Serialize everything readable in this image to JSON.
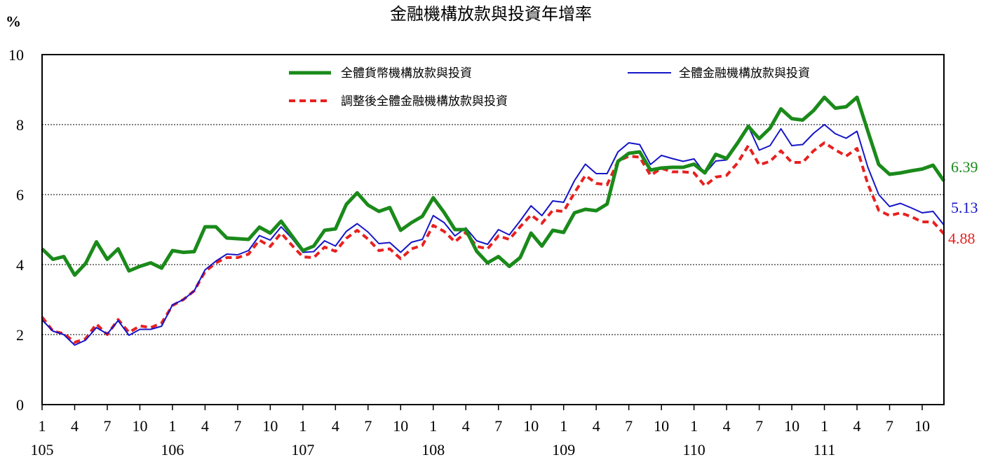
{
  "chart_data": {
    "type": "line",
    "title": "金融機構放款與投資年增率",
    "ylabel": "%",
    "ylim": [
      0,
      10
    ],
    "yticks": [
      0,
      2,
      4,
      6,
      8,
      10
    ],
    "grid": "horizontal dotted at 2,4,6,8",
    "legend_position": "top",
    "month_ticks": [
      "1",
      "4",
      "7",
      "10",
      "1",
      "4",
      "7",
      "10",
      "1",
      "4",
      "7",
      "10",
      "1",
      "4",
      "7",
      "10",
      "1",
      "4",
      "7",
      "10",
      "1",
      "4",
      "7",
      "10",
      "1",
      "4",
      "7",
      "10"
    ],
    "year_labels": [
      "105",
      "106",
      "107",
      "108",
      "109",
      "110",
      "111"
    ],
    "x_range": [
      "105-01",
      "111-11"
    ],
    "series": [
      {
        "name": "全體貨幣機構放款與投資",
        "color": "#1a8a1a",
        "style": "solid-thick",
        "end_label": "6.39",
        "values": [
          4.45,
          4.15,
          4.23,
          3.7,
          4.03,
          4.65,
          4.15,
          4.45,
          3.82,
          3.95,
          4.05,
          3.9,
          4.4,
          4.35,
          4.37,
          5.08,
          5.08,
          4.76,
          4.74,
          4.72,
          5.07,
          4.9,
          5.24,
          4.82,
          4.4,
          4.53,
          4.98,
          5.02,
          5.72,
          6.05,
          5.7,
          5.52,
          5.63,
          4.98,
          5.2,
          5.38,
          5.91,
          5.49,
          5.0,
          5.0,
          4.38,
          4.05,
          4.23,
          3.95,
          4.2,
          4.9,
          4.53,
          4.98,
          4.92,
          5.48,
          5.58,
          5.54,
          5.73,
          6.95,
          7.18,
          7.22,
          6.7,
          6.76,
          6.78,
          6.78,
          6.87,
          6.62,
          7.15,
          7.03,
          7.47,
          7.95,
          7.6,
          7.9,
          8.45,
          8.17,
          8.13,
          8.4,
          8.78,
          8.47,
          8.51,
          8.78,
          7.81,
          6.86,
          6.58,
          6.62,
          6.68,
          6.73,
          6.84,
          6.39
        ]
      },
      {
        "name": "全體金融機構放款與投資",
        "color": "#1515c8",
        "style": "solid-thin",
        "end_label": "5.13",
        "values": [
          2.42,
          2.1,
          2.0,
          1.7,
          1.84,
          2.2,
          2.02,
          2.4,
          1.98,
          2.15,
          2.15,
          2.24,
          2.85,
          3.0,
          3.25,
          3.85,
          4.1,
          4.3,
          4.28,
          4.4,
          4.83,
          4.7,
          5.08,
          4.75,
          4.35,
          4.37,
          4.68,
          4.53,
          4.95,
          5.17,
          4.93,
          4.6,
          4.63,
          4.35,
          4.64,
          4.72,
          5.4,
          5.2,
          4.82,
          5.05,
          4.68,
          4.58,
          5.0,
          4.85,
          5.25,
          5.68,
          5.4,
          5.82,
          5.78,
          6.4,
          6.87,
          6.6,
          6.6,
          7.22,
          7.48,
          7.43,
          6.86,
          7.12,
          7.03,
          6.95,
          7.02,
          6.6,
          6.96,
          6.99,
          7.45,
          7.95,
          7.27,
          7.4,
          7.88,
          7.4,
          7.43,
          7.75,
          8.0,
          7.74,
          7.61,
          7.81,
          6.78,
          6.0,
          5.66,
          5.75,
          5.62,
          5.48,
          5.52,
          5.13
        ]
      },
      {
        "name": "調整後全體金融機構放款與投資",
        "color": "#e82020",
        "style": "dashed",
        "end_label": "4.88",
        "values": [
          2.5,
          2.1,
          2.03,
          1.78,
          1.88,
          2.3,
          2.0,
          2.43,
          2.06,
          2.25,
          2.2,
          2.33,
          2.83,
          3.0,
          3.25,
          3.8,
          4.05,
          4.2,
          4.2,
          4.3,
          4.7,
          4.52,
          4.9,
          4.55,
          4.22,
          4.2,
          4.5,
          4.38,
          4.75,
          4.98,
          4.73,
          4.4,
          4.45,
          4.17,
          4.45,
          4.55,
          5.12,
          4.95,
          4.65,
          4.92,
          4.52,
          4.45,
          4.82,
          4.72,
          5.08,
          5.42,
          5.18,
          5.55,
          5.52,
          6.05,
          6.55,
          6.32,
          6.28,
          6.95,
          7.1,
          7.07,
          6.55,
          6.75,
          6.65,
          6.65,
          6.62,
          6.25,
          6.5,
          6.55,
          6.9,
          7.4,
          6.85,
          6.95,
          7.25,
          6.92,
          6.92,
          7.25,
          7.48,
          7.28,
          7.1,
          7.32,
          6.3,
          5.55,
          5.4,
          5.48,
          5.37,
          5.22,
          5.22,
          4.88
        ]
      }
    ]
  }
}
